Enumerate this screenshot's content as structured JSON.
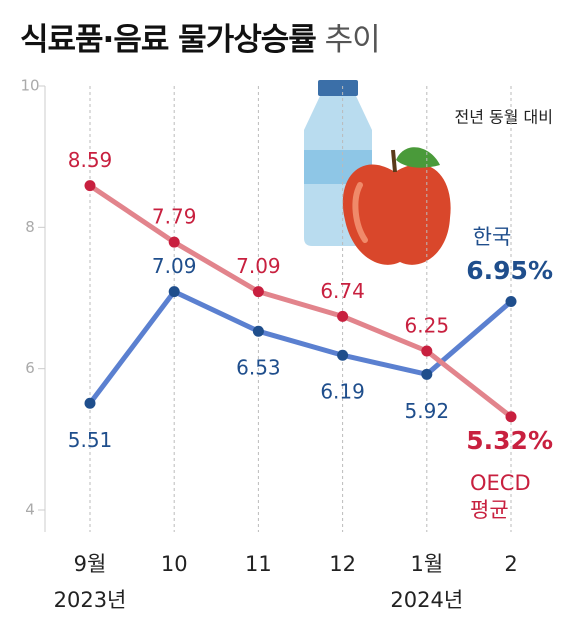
{
  "chart_data": {
    "type": "line",
    "title": "식료품·음료 물가상승률",
    "title_suffix": "추이",
    "subtitle": "전년 동월 대비",
    "categories": [
      "9월",
      "10",
      "11",
      "12",
      "1월",
      "2"
    ],
    "x_sublabels": [
      "2023년",
      null,
      null,
      null,
      "2024년",
      null
    ],
    "series": [
      {
        "name": "한국",
        "color": "#5b80d0",
        "marker_color": "#1f4e8c",
        "values": [
          5.51,
          7.09,
          6.53,
          6.19,
          5.92,
          6.95
        ],
        "value_labels": [
          "5.51",
          "7.09",
          "6.53",
          "6.19",
          "5.92",
          "6.95%"
        ]
      },
      {
        "name": "OECD 평균",
        "color": "#e2848c",
        "marker_color": "#c8203f",
        "values": [
          8.59,
          7.79,
          7.09,
          6.74,
          6.25,
          5.32
        ],
        "value_labels": [
          "8.59",
          "7.79",
          "7.09",
          "6.74",
          "6.25",
          "5.32%"
        ]
      }
    ],
    "ylim": [
      4,
      10
    ],
    "yticks": [
      4,
      6,
      8,
      10
    ],
    "grid": true
  }
}
